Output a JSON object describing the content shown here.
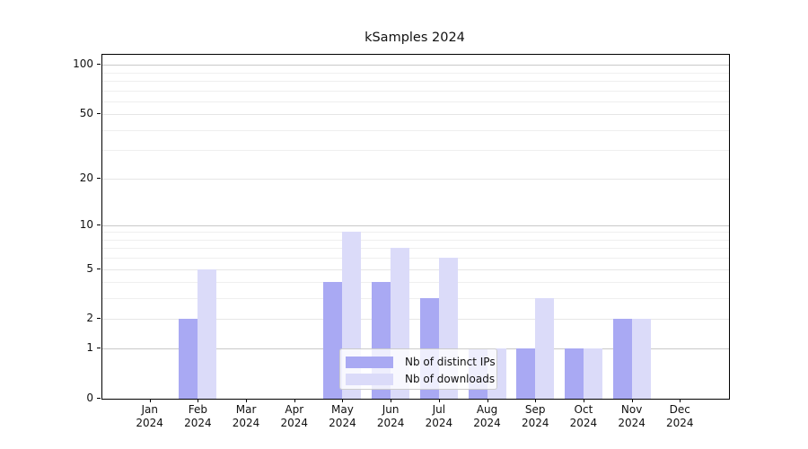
{
  "chart_data": {
    "type": "bar",
    "title": "kSamples 2024",
    "categories": [
      {
        "month": "Jan",
        "year": "2024"
      },
      {
        "month": "Feb",
        "year": "2024"
      },
      {
        "month": "Mar",
        "year": "2024"
      },
      {
        "month": "Apr",
        "year": "2024"
      },
      {
        "month": "May",
        "year": "2024"
      },
      {
        "month": "Jun",
        "year": "2024"
      },
      {
        "month": "Jul",
        "year": "2024"
      },
      {
        "month": "Aug",
        "year": "2024"
      },
      {
        "month": "Sep",
        "year": "2024"
      },
      {
        "month": "Oct",
        "year": "2024"
      },
      {
        "month": "Nov",
        "year": "2024"
      },
      {
        "month": "Dec",
        "year": "2024"
      }
    ],
    "series": [
      {
        "name": "Nb of distinct IPs",
        "color": "#a9a9f3",
        "values": [
          0,
          2,
          0,
          0,
          4,
          4,
          3,
          1,
          1,
          1,
          2,
          0
        ]
      },
      {
        "name": "Nb of downloads",
        "color": "#dbdbf9",
        "values": [
          0,
          5,
          0,
          0,
          9,
          7,
          6,
          1,
          3,
          1,
          2,
          0
        ]
      }
    ],
    "y_axis": {
      "scale": "log1p",
      "min": 0,
      "max": 115,
      "major_ticks": [
        0,
        1,
        2,
        5,
        10,
        20,
        50,
        100
      ],
      "decade_gridlines": [
        1,
        10,
        100
      ],
      "minor_gridlines": [
        3,
        4,
        6,
        7,
        8,
        9,
        30,
        40,
        60,
        70,
        80,
        90
      ]
    },
    "legend": {
      "position": "lower center"
    },
    "grid": true
  },
  "colors": {
    "spine": "#000000",
    "grid_decade": "#c9c9c9",
    "grid_labeled": "#e6e6e6",
    "grid_minor": "#efefef",
    "legend_border": "#cccccc",
    "text": "#111111",
    "background": "#ffffff"
  }
}
